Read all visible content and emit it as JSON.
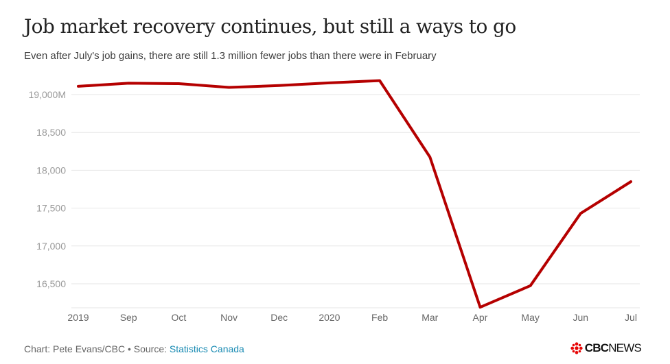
{
  "chart_data": {
    "type": "line",
    "title": "Job market recovery continues, but still a ways to go",
    "subtitle": "Even after July's job gains, there are still 1.3 million fewer jobs than there were in February",
    "categories": [
      "2019",
      "Sep",
      "Oct",
      "Nov",
      "Dec",
      "2020",
      "Feb",
      "Mar",
      "Apr",
      "May",
      "Jun",
      "Jul"
    ],
    "series": [
      {
        "values": [
          19110,
          19150,
          19145,
          19095,
          19120,
          19155,
          19185,
          18175,
          16190,
          16475,
          17430,
          17850
        ],
        "color": "#b50000"
      }
    ],
    "y_ticks": [
      16500,
      17000,
      17500,
      18000,
      18500,
      19000
    ],
    "y_tick_labels": [
      "16,500",
      "17,000",
      "17,500",
      "18,000",
      "18,500",
      "19,000M"
    ],
    "ylim": [
      16200,
      19200
    ],
    "grid": true,
    "legend": "none"
  },
  "footer": {
    "credit": "Chart: Pete Evans/CBC • Source: ",
    "source_link": "Statistics Canada"
  },
  "logo": {
    "brand": "CBC",
    "suffix": "NEWS",
    "icon": "cbc-gem-icon"
  }
}
